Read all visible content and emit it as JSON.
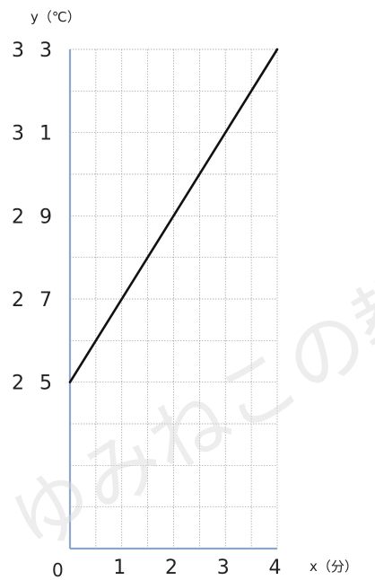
{
  "chart_data": {
    "type": "line",
    "x": [
      0,
      4
    ],
    "y": [
      25,
      33
    ],
    "xlim": [
      0,
      4
    ],
    "ylim": [
      21,
      33
    ],
    "x_ticks": [
      "1",
      "2",
      "3",
      "4"
    ],
    "y_ticks": [
      "3 3",
      "3 1",
      "2 9",
      "2 7",
      "2 5"
    ],
    "origin_label": "0",
    "xlabel": "x（分）",
    "ylabel": "y（℃）",
    "grid": true,
    "line_color": "#111111",
    "axis_color": "#8fa6cc",
    "grid_color": "#9a9a9a"
  },
  "watermark": "ゆみねこの教科"
}
